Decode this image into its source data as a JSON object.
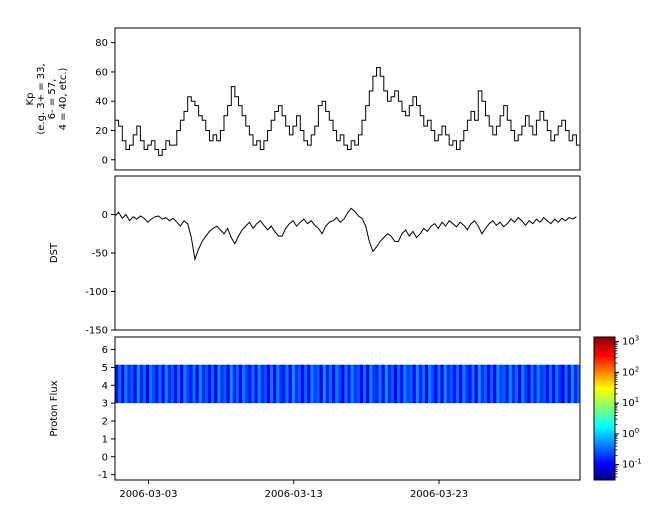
{
  "figure": {
    "background": "#ffffff",
    "axis_color": "#000000",
    "series_color": "#000000"
  },
  "x_axis": {
    "domain": [
      0.7,
      32.7
    ],
    "ticks": [
      {
        "day": 3,
        "label": "2006-03-03"
      },
      {
        "day": 13,
        "label": "2006-03-13"
      },
      {
        "day": 23,
        "label": "2006-03-23"
      }
    ]
  },
  "chart_data": [
    {
      "type": "line",
      "style": "step",
      "name": "Kp",
      "ylabel_lines": [
        "Kp",
        "(e.g. 3+ = 33,",
        "6- = 57,",
        "4 = 40, etc.)"
      ],
      "ylim": [
        -7,
        90
      ],
      "yticks": [
        0,
        20,
        40,
        60,
        80
      ],
      "x_start": 0.7,
      "x_step": 0.25,
      "line_color": "#000000",
      "values": [
        27,
        23,
        13,
        7,
        10,
        17,
        23,
        13,
        7,
        10,
        13,
        7,
        3,
        7,
        13,
        10,
        10,
        20,
        27,
        33,
        43,
        40,
        37,
        30,
        27,
        20,
        13,
        17,
        13,
        20,
        30,
        37,
        50,
        43,
        37,
        30,
        23,
        17,
        10,
        13,
        7,
        13,
        20,
        27,
        33,
        37,
        30,
        23,
        17,
        23,
        30,
        20,
        13,
        10,
        17,
        23,
        37,
        40,
        33,
        27,
        20,
        13,
        17,
        10,
        7,
        13,
        10,
        17,
        27,
        37,
        47,
        57,
        63,
        57,
        47,
        40,
        43,
        47,
        40,
        33,
        30,
        37,
        43,
        37,
        30,
        23,
        27,
        20,
        13,
        17,
        23,
        17,
        10,
        13,
        7,
        13,
        20,
        27,
        33,
        27,
        47,
        40,
        30,
        23,
        17,
        23,
        30,
        37,
        27,
        20,
        13,
        17,
        23,
        30,
        23,
        17,
        27,
        33,
        27,
        20,
        13,
        17,
        23,
        27,
        20,
        13,
        17,
        10
      ]
    },
    {
      "type": "line",
      "style": "line",
      "name": "DST",
      "ylabel": "DST",
      "ylim": [
        -150,
        50
      ],
      "yticks": [
        0,
        -50,
        -100,
        -150
      ],
      "x_start": 0.7,
      "x_step": 0.25,
      "line_color": "#000000",
      "values": [
        -2,
        3,
        -5,
        0,
        -8,
        -3,
        -6,
        -2,
        -5,
        -10,
        -6,
        -3,
        -2,
        -6,
        -4,
        -8,
        -5,
        -10,
        -15,
        -8,
        -12,
        -30,
        -58,
        -45,
        -35,
        -28,
        -22,
        -18,
        -15,
        -20,
        -25,
        -18,
        -30,
        -38,
        -28,
        -20,
        -15,
        -10,
        -18,
        -12,
        -8,
        -14,
        -20,
        -15,
        -22,
        -28,
        -28,
        -18,
        -12,
        -8,
        -15,
        -10,
        -6,
        -12,
        -8,
        -14,
        -18,
        -25,
        -15,
        -10,
        -8,
        -4,
        -10,
        -6,
        2,
        8,
        4,
        -2,
        -5,
        -15,
        -35,
        -48,
        -42,
        -35,
        -30,
        -25,
        -28,
        -35,
        -35,
        -25,
        -20,
        -28,
        -22,
        -30,
        -25,
        -18,
        -22,
        -15,
        -12,
        -18,
        -10,
        -15,
        -8,
        -12,
        -16,
        -10,
        -14,
        -20,
        -12,
        -8,
        -15,
        -25,
        -18,
        -12,
        -8,
        -14,
        -10,
        -16,
        -12,
        -6,
        -10,
        -4,
        -8,
        -14,
        -8,
        -12,
        -6,
        -10,
        -4,
        -8,
        -12,
        -6,
        -10,
        -5,
        -8,
        -4,
        -6,
        -3
      ]
    },
    {
      "type": "heatmap",
      "name": "Proton Flux",
      "ylabel": "Proton Flux",
      "ylim": [
        -1.3,
        6.7
      ],
      "yticks": [
        6,
        5,
        4,
        3,
        2,
        1,
        0,
        -1
      ],
      "band": {
        "y_min": 3.0,
        "y_max": 5.15
      },
      "x_start": 0.7,
      "x_end": 32.7,
      "column_flux": [
        0.12,
        0.34,
        0.09,
        0.45,
        0.18,
        0.27,
        0.1,
        0.52,
        0.15,
        0.31,
        0.08,
        0.41,
        0.22,
        0.13,
        0.37,
        0.1,
        0.48,
        0.16,
        0.29,
        0.11,
        0.35,
        0.09,
        0.44,
        0.2,
        0.14,
        0.39,
        0.1,
        0.5,
        0.17,
        0.26,
        0.12,
        0.33,
        0.08,
        0.46,
        0.19,
        0.28,
        0.1,
        0.53,
        0.15,
        0.3,
        0.09,
        0.42,
        0.21,
        0.13,
        0.36,
        0.11,
        0.47,
        0.16,
        0.25,
        0.1,
        0.38,
        0.08,
        0.43,
        0.18,
        0.14,
        0.4,
        0.09,
        0.51,
        0.17,
        0.27,
        0.11,
        0.32,
        0.1,
        0.45,
        0.2,
        0.29,
        0.08,
        0.49,
        0.15,
        0.34,
        0.12,
        0.41,
        0.22,
        0.09,
        0.37,
        0.13,
        0.46,
        0.18,
        0.26,
        0.1,
        0.36,
        0.08,
        0.44,
        0.19,
        0.15,
        0.39,
        0.11,
        0.52,
        0.16,
        0.28,
        0.09,
        0.33,
        0.12,
        0.47,
        0.21,
        0.3,
        0.1,
        0.5,
        0.14,
        0.35,
        0.08,
        0.42,
        0.23,
        0.11,
        0.38,
        0.09,
        0.48,
        0.17,
        0.27,
        0.13,
        0.34,
        0.1,
        0.43,
        0.2,
        0.12,
        0.4,
        0.08,
        0.51,
        0.18,
        0.29,
        0.11,
        0.31,
        0.09,
        0.46,
        0.22,
        0.28,
        0.13,
        0.49,
        0.16,
        0.33,
        0.1,
        0.44,
        0.21,
        0.08,
        0.37,
        0.14,
        0.45,
        0.19,
        0.25,
        0.12,
        0.35,
        0.11,
        0.41,
        0.17,
        0.09,
        0.38,
        0.1,
        0.53,
        0.15,
        0.32
      ],
      "colorbar": {
        "scale": "log",
        "log_min": -1.5,
        "log_max": 3.15,
        "tick_exponents": [
          3,
          2,
          1,
          0,
          -1
        ],
        "tick_labels": [
          "10^3",
          "10^2",
          "10^1",
          "10^0",
          "10^-1"
        ],
        "cmap": "jet",
        "cmap_stops": [
          [
            0,
            "#00007f"
          ],
          [
            0.11,
            "#0000ff"
          ],
          [
            0.375,
            "#00ffff"
          ],
          [
            0.5,
            "#7cff79"
          ],
          [
            0.64,
            "#ffff00"
          ],
          [
            0.875,
            "#ff0000"
          ],
          [
            1,
            "#7f0000"
          ]
        ]
      }
    }
  ]
}
